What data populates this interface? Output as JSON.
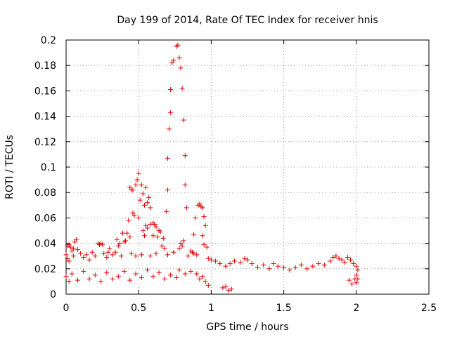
{
  "chart_data": {
    "type": "scatter",
    "title": "Day 199 of 2014, Rate Of TEC Index for receiver hnis",
    "xlabel": "GPS time / hours",
    "ylabel": "ROTI / TECUs",
    "xlim": [
      0,
      2.5
    ],
    "ylim": [
      0,
      0.2
    ],
    "x_ticks": [
      0,
      0.5,
      1,
      1.5,
      2,
      2.5
    ],
    "x_tick_labels": [
      "0",
      "0.5",
      "1",
      "1.5",
      "2",
      "2.5"
    ],
    "y_ticks": [
      0,
      0.02,
      0.04,
      0.06,
      0.08,
      0.1,
      0.12,
      0.14,
      0.16,
      0.18,
      0.2
    ],
    "y_tick_labels": [
      "0",
      "0.02",
      "0.04",
      "0.06",
      "0.08",
      "0.1",
      "0.12",
      "0.14",
      "0.16",
      "0.18",
      "0.2"
    ],
    "grid": true,
    "marker": "+",
    "marker_color": "#e00000",
    "series": [
      {
        "name": "ROTI",
        "points": [
          [
            0.76,
            0.195
          ],
          [
            0.77,
            0.196
          ],
          [
            0.73,
            0.182
          ],
          [
            0.74,
            0.184
          ],
          [
            0.78,
            0.186
          ],
          [
            0.79,
            0.178
          ],
          [
            0.72,
            0.161
          ],
          [
            0.8,
            0.162
          ],
          [
            0.72,
            0.143
          ],
          [
            0.81,
            0.137
          ],
          [
            0.71,
            0.13
          ],
          [
            0.82,
            0.109
          ],
          [
            0.7,
            0.107
          ],
          [
            0.5,
            0.095
          ],
          [
            0.49,
            0.09
          ],
          [
            0.48,
            0.086
          ],
          [
            0.44,
            0.084
          ],
          [
            0.45,
            0.082
          ],
          [
            0.46,
            0.082
          ],
          [
            0.52,
            0.086
          ],
          [
            0.55,
            0.084
          ],
          [
            0.53,
            0.079
          ],
          [
            0.57,
            0.076
          ],
          [
            0.51,
            0.074
          ],
          [
            0.56,
            0.072
          ],
          [
            0.54,
            0.07
          ],
          [
            0.58,
            0.068
          ],
          [
            0.82,
            0.086
          ],
          [
            0.7,
            0.082
          ],
          [
            0.83,
            0.068
          ],
          [
            0.46,
            0.064
          ],
          [
            0.47,
            0.062
          ],
          [
            0.5,
            0.06
          ],
          [
            0.69,
            0.065
          ],
          [
            0.92,
            0.071
          ],
          [
            0.93,
            0.069
          ],
          [
            0.94,
            0.068
          ],
          [
            0.91,
            0.07
          ],
          [
            0.89,
            0.06
          ],
          [
            0.95,
            0.061
          ],
          [
            0.43,
            0.058
          ],
          [
            0.6,
            0.056
          ],
          [
            0.61,
            0.055
          ],
          [
            0.62,
            0.053
          ],
          [
            0.58,
            0.055
          ],
          [
            0.55,
            0.054
          ],
          [
            0.56,
            0.052
          ],
          [
            0.64,
            0.05
          ],
          [
            0.53,
            0.05
          ],
          [
            0.65,
            0.049
          ],
          [
            0.42,
            0.048
          ],
          [
            0.39,
            0.048
          ],
          [
            0.54,
            0.046
          ],
          [
            0.6,
            0.046
          ],
          [
            0.44,
            0.045
          ],
          [
            0.63,
            0.045
          ],
          [
            0.88,
            0.047
          ],
          [
            0.94,
            0.046
          ],
          [
            0.96,
            0.054
          ],
          [
            0.81,
            0.042
          ],
          [
            0.79,
            0.04
          ],
          [
            0.8,
            0.038
          ],
          [
            0.78,
            0.036
          ],
          [
            0.67,
            0.044
          ],
          [
            0.35,
            0.043
          ],
          [
            0.37,
            0.04
          ],
          [
            0.36,
            0.038
          ],
          [
            0.66,
            0.038
          ],
          [
            0.68,
            0.036
          ],
          [
            0.95,
            0.039
          ],
          [
            0.97,
            0.037
          ],
          [
            0.86,
            0.034
          ],
          [
            0.87,
            0.033
          ],
          [
            0.88,
            0.032
          ],
          [
            0.9,
            0.031
          ],
          [
            0.02,
            0.039
          ],
          [
            0.01,
            0.038
          ],
          [
            0.03,
            0.037
          ],
          [
            0.05,
            0.036
          ],
          [
            0.06,
            0.041
          ],
          [
            0.07,
            0.043
          ],
          [
            0.04,
            0.034
          ],
          [
            0.08,
            0.035
          ],
          [
            0.22,
            0.04
          ],
          [
            0.23,
            0.039
          ],
          [
            0.24,
            0.04
          ],
          [
            0.25,
            0.039
          ],
          [
            0.3,
            0.036
          ],
          [
            0.29,
            0.033
          ],
          [
            0.41,
            0.042
          ],
          [
            0.4,
            0.041
          ],
          [
            0.0,
            0.031
          ],
          [
            0.01,
            0.028
          ],
          [
            0.02,
            0.026
          ],
          [
            0.05,
            0.03
          ],
          [
            0.1,
            0.032
          ],
          [
            0.12,
            0.029
          ],
          [
            0.14,
            0.031
          ],
          [
            0.16,
            0.027
          ],
          [
            0.18,
            0.033
          ],
          [
            0.2,
            0.03
          ],
          [
            0.26,
            0.032
          ],
          [
            0.28,
            0.029
          ],
          [
            0.32,
            0.031
          ],
          [
            0.34,
            0.033
          ],
          [
            0.38,
            0.03
          ],
          [
            0.45,
            0.032
          ],
          [
            0.48,
            0.03
          ],
          [
            0.52,
            0.031
          ],
          [
            0.58,
            0.03
          ],
          [
            0.62,
            0.032
          ],
          [
            0.7,
            0.031
          ],
          [
            0.74,
            0.033
          ],
          [
            0.84,
            0.03
          ],
          [
            0.98,
            0.028
          ],
          [
            1.0,
            0.027
          ],
          [
            1.03,
            0.026
          ],
          [
            1.06,
            0.024
          ],
          [
            1.1,
            0.022
          ],
          [
            1.13,
            0.024
          ],
          [
            1.16,
            0.026
          ],
          [
            1.2,
            0.025
          ],
          [
            1.23,
            0.028
          ],
          [
            1.25,
            0.027
          ],
          [
            1.28,
            0.024
          ],
          [
            1.32,
            0.021
          ],
          [
            1.36,
            0.023
          ],
          [
            1.4,
            0.02
          ],
          [
            1.43,
            0.024
          ],
          [
            1.46,
            0.022
          ],
          [
            1.5,
            0.021
          ],
          [
            1.54,
            0.019
          ],
          [
            1.58,
            0.021
          ],
          [
            1.62,
            0.023
          ],
          [
            1.66,
            0.02
          ],
          [
            1.7,
            0.022
          ],
          [
            1.74,
            0.024
          ],
          [
            1.78,
            0.023
          ],
          [
            1.82,
            0.026
          ],
          [
            1.84,
            0.029
          ],
          [
            1.86,
            0.03
          ],
          [
            1.88,
            0.028
          ],
          [
            1.9,
            0.027
          ],
          [
            1.92,
            0.025
          ],
          [
            1.94,
            0.029
          ],
          [
            1.96,
            0.027
          ],
          [
            1.98,
            0.024
          ],
          [
            2.0,
            0.022
          ],
          [
            2.01,
            0.019
          ],
          [
            2.0,
            0.015
          ],
          [
            2.01,
            0.012
          ],
          [
            2.0,
            0.009
          ],
          [
            1.99,
            0.012
          ],
          [
            1.97,
            0.008
          ],
          [
            1.95,
            0.011
          ],
          [
            1.12,
            0.003
          ],
          [
            1.14,
            0.004
          ],
          [
            1.1,
            0.006
          ],
          [
            1.08,
            0.005
          ],
          [
            0.98,
            0.007
          ],
          [
            0.96,
            0.01
          ],
          [
            0.94,
            0.014
          ],
          [
            0.92,
            0.012
          ],
          [
            0.9,
            0.016
          ],
          [
            0.86,
            0.018
          ],
          [
            0.82,
            0.016
          ],
          [
            0.78,
            0.019
          ],
          [
            0.76,
            0.013
          ],
          [
            0.72,
            0.015
          ],
          [
            0.68,
            0.012
          ],
          [
            0.64,
            0.017
          ],
          [
            0.6,
            0.014
          ],
          [
            0.56,
            0.019
          ],
          [
            0.52,
            0.013
          ],
          [
            0.48,
            0.016
          ],
          [
            0.44,
            0.011
          ],
          [
            0.4,
            0.018
          ],
          [
            0.36,
            0.014
          ],
          [
            0.32,
            0.012
          ],
          [
            0.28,
            0.017
          ],
          [
            0.24,
            0.01
          ],
          [
            0.2,
            0.015
          ],
          [
            0.16,
            0.012
          ],
          [
            0.12,
            0.018
          ],
          [
            0.08,
            0.011
          ],
          [
            0.04,
            0.016
          ],
          [
            0.02,
            0.01
          ],
          [
            0.0,
            0.014
          ]
        ]
      }
    ]
  }
}
